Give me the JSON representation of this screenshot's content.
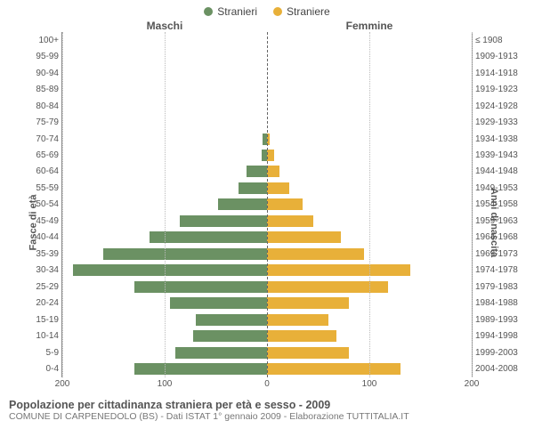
{
  "legend": {
    "male": {
      "label": "Stranieri",
      "color": "#6b9163"
    },
    "female": {
      "label": "Straniere",
      "color": "#e8b039"
    }
  },
  "headers": {
    "left": "Maschi",
    "right": "Femmine"
  },
  "axis_titles": {
    "left": "Fasce di età",
    "right": "Anni di nascita"
  },
  "x_axis": {
    "max": 200,
    "ticks": [
      200,
      100,
      0,
      100,
      200
    ],
    "tick_positions_pct": [
      0,
      25,
      50,
      75,
      100
    ],
    "grid_positions_pct": [
      0,
      25,
      50,
      75,
      100
    ]
  },
  "colors": {
    "male_bar": "#6b9163",
    "female_bar": "#e8b039",
    "grid": "#bbbbbb",
    "background": "#ffffff"
  },
  "rows": [
    {
      "age": "100+",
      "year": "≤ 1908",
      "male": 0,
      "female": 0
    },
    {
      "age": "95-99",
      "year": "1909-1913",
      "male": 0,
      "female": 0
    },
    {
      "age": "90-94",
      "year": "1914-1918",
      "male": 0,
      "female": 0
    },
    {
      "age": "85-89",
      "year": "1919-1923",
      "male": 0,
      "female": 0
    },
    {
      "age": "80-84",
      "year": "1924-1928",
      "male": 0,
      "female": 0
    },
    {
      "age": "75-79",
      "year": "1929-1933",
      "male": 0,
      "female": 0
    },
    {
      "age": "70-74",
      "year": "1934-1938",
      "male": 4,
      "female": 3
    },
    {
      "age": "65-69",
      "year": "1939-1943",
      "male": 5,
      "female": 7
    },
    {
      "age": "60-64",
      "year": "1944-1948",
      "male": 20,
      "female": 12
    },
    {
      "age": "55-59",
      "year": "1949-1953",
      "male": 28,
      "female": 22
    },
    {
      "age": "50-54",
      "year": "1954-1958",
      "male": 48,
      "female": 35
    },
    {
      "age": "45-49",
      "year": "1959-1963",
      "male": 85,
      "female": 45
    },
    {
      "age": "40-44",
      "year": "1964-1968",
      "male": 115,
      "female": 72
    },
    {
      "age": "35-39",
      "year": "1969-1973",
      "male": 160,
      "female": 95
    },
    {
      "age": "30-34",
      "year": "1974-1978",
      "male": 190,
      "female": 140
    },
    {
      "age": "25-29",
      "year": "1979-1983",
      "male": 130,
      "female": 118
    },
    {
      "age": "20-24",
      "year": "1984-1988",
      "male": 95,
      "female": 80
    },
    {
      "age": "15-19",
      "year": "1989-1993",
      "male": 70,
      "female": 60
    },
    {
      "age": "10-14",
      "year": "1994-1998",
      "male": 72,
      "female": 68
    },
    {
      "age": "5-9",
      "year": "1999-2003",
      "male": 90,
      "female": 80
    },
    {
      "age": "0-4",
      "year": "2004-2008",
      "male": 130,
      "female": 130
    }
  ],
  "footer": {
    "title": "Popolazione per cittadinanza straniera per età e sesso - 2009",
    "subtitle": "COMUNE DI CARPENEDOLO (BS) - Dati ISTAT 1° gennaio 2009 - Elaborazione TUTTITALIA.IT"
  }
}
